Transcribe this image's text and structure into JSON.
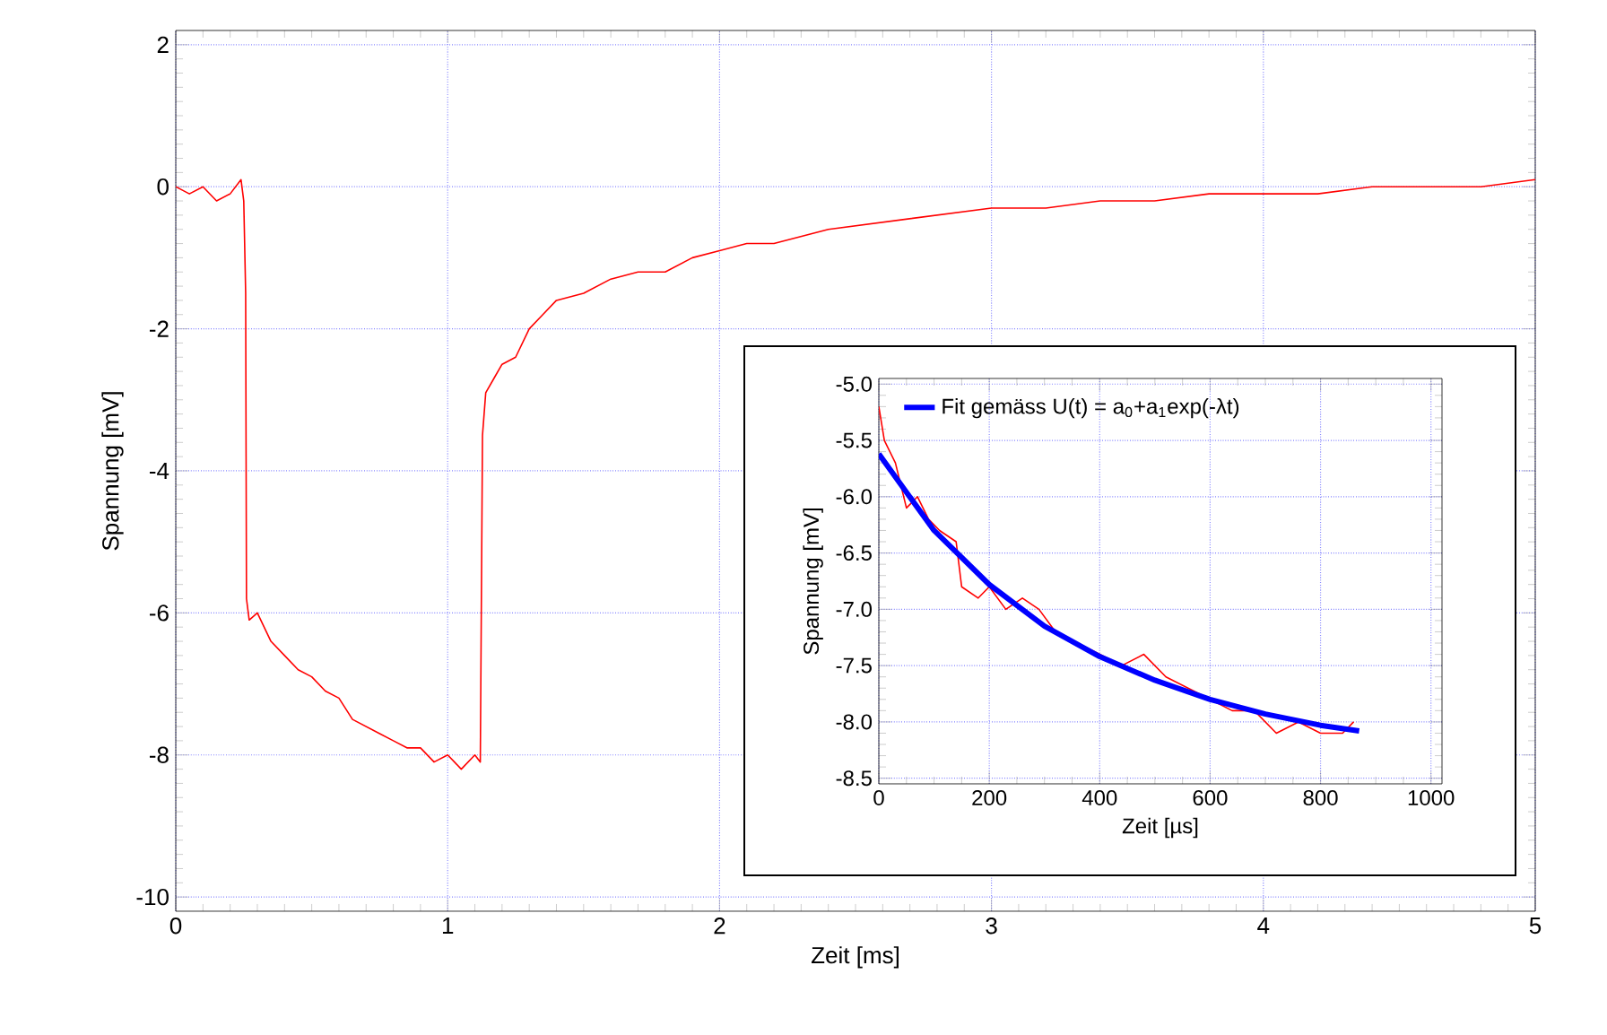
{
  "chart_data": [
    {
      "type": "line",
      "xlabel": "Zeit [ms]",
      "ylabel": "Spannung [mV]",
      "x": [
        0,
        0.05,
        0.1,
        0.15,
        0.2,
        0.24,
        0.25,
        0.257,
        0.26,
        0.27,
        0.3,
        0.35,
        0.4,
        0.45,
        0.5,
        0.55,
        0.6,
        0.65,
        0.7,
        0.75,
        0.8,
        0.85,
        0.9,
        0.95,
        1.0,
        1.05,
        1.1,
        1.12,
        1.128,
        1.14,
        1.17,
        1.2,
        1.25,
        1.3,
        1.35,
        1.4,
        1.5,
        1.6,
        1.7,
        1.8,
        1.9,
        2.0,
        2.1,
        2.2,
        2.4,
        2.6,
        2.8,
        3.0,
        3.2,
        3.4,
        3.6,
        3.8,
        4.0,
        4.2,
        4.4,
        4.6,
        4.8,
        5.0
      ],
      "series": [
        {
          "color": "#ff0000",
          "values": [
            0,
            -0.1,
            0,
            -0.2,
            -0.1,
            0.1,
            -0.2,
            -1.5,
            -5.8,
            -6.1,
            -6.0,
            -6.4,
            -6.6,
            -6.8,
            -6.9,
            -7.1,
            -7.2,
            -7.5,
            -7.6,
            -7.7,
            -7.8,
            -7.9,
            -7.9,
            -8.1,
            -8.0,
            -8.2,
            -8.0,
            -8.1,
            -3.5,
            -2.9,
            -2.7,
            -2.5,
            -2.4,
            -2.0,
            -1.8,
            -1.6,
            -1.5,
            -1.3,
            -1.2,
            -1.2,
            -1.0,
            -0.9,
            -0.8,
            -0.8,
            -0.6,
            -0.5,
            -0.4,
            -0.3,
            -0.3,
            -0.2,
            -0.2,
            -0.1,
            -0.1,
            -0.1,
            0,
            0,
            0,
            0.1
          ]
        }
      ],
      "xlim": [
        0,
        5
      ],
      "ylim": [
        -10.2,
        2.2
      ],
      "xticks": [
        0,
        1,
        2,
        3,
        4,
        5
      ],
      "yticks": [
        -10,
        -8,
        -6,
        -4,
        -2,
        0,
        2
      ],
      "grid": true
    },
    {
      "type": "line",
      "xlabel": "Zeit [µs]",
      "ylabel": "Spannung [mV]",
      "legend": "top left",
      "series": [
        {
          "color": "#ff0000",
          "x": [
            0,
            10,
            30,
            50,
            70,
            90,
            110,
            140,
            150,
            180,
            200,
            230,
            260,
            290,
            320,
            360,
            400,
            440,
            480,
            520,
            560,
            600,
            640,
            680,
            720,
            760,
            800,
            840,
            860
          ],
          "values": [
            -5.2,
            -5.5,
            -5.7,
            -6.1,
            -6.0,
            -6.2,
            -6.3,
            -6.4,
            -6.8,
            -6.9,
            -6.8,
            -7.0,
            -6.9,
            -7.0,
            -7.2,
            -7.3,
            -7.4,
            -7.5,
            -7.4,
            -7.6,
            -7.7,
            -7.8,
            -7.9,
            -7.9,
            -8.1,
            -8.0,
            -8.1,
            -8.1,
            -8.0
          ]
        },
        {
          "name": "Fit gemäss U(t) = a$_{0}$+a$_{1}$exp(-λt)",
          "color": "#0000ff",
          "x": [
            0,
            100,
            200,
            300,
            400,
            500,
            600,
            700,
            800,
            870
          ],
          "values": [
            -5.62,
            -6.3,
            -6.78,
            -7.15,
            -7.42,
            -7.63,
            -7.8,
            -7.93,
            -8.03,
            -8.08
          ]
        }
      ],
      "xlim": [
        0,
        1020
      ],
      "ylim": [
        -8.55,
        -4.95
      ],
      "xticks": [
        0,
        200,
        400,
        600,
        800,
        1000
      ],
      "yticks": [
        {
          "value": -8.5,
          "label": "-8.5"
        },
        {
          "value": -8,
          "label": "-8.0"
        },
        {
          "value": -7.5,
          "label": "-7.5"
        },
        {
          "value": -7,
          "label": "-7.0"
        },
        {
          "value": -6.5,
          "label": "-6.5"
        },
        {
          "value": -6,
          "label": "-6.0"
        },
        {
          "value": -5.5,
          "label": "-5.5"
        },
        {
          "value": -5,
          "label": "-5.0"
        }
      ],
      "grid": true
    }
  ]
}
